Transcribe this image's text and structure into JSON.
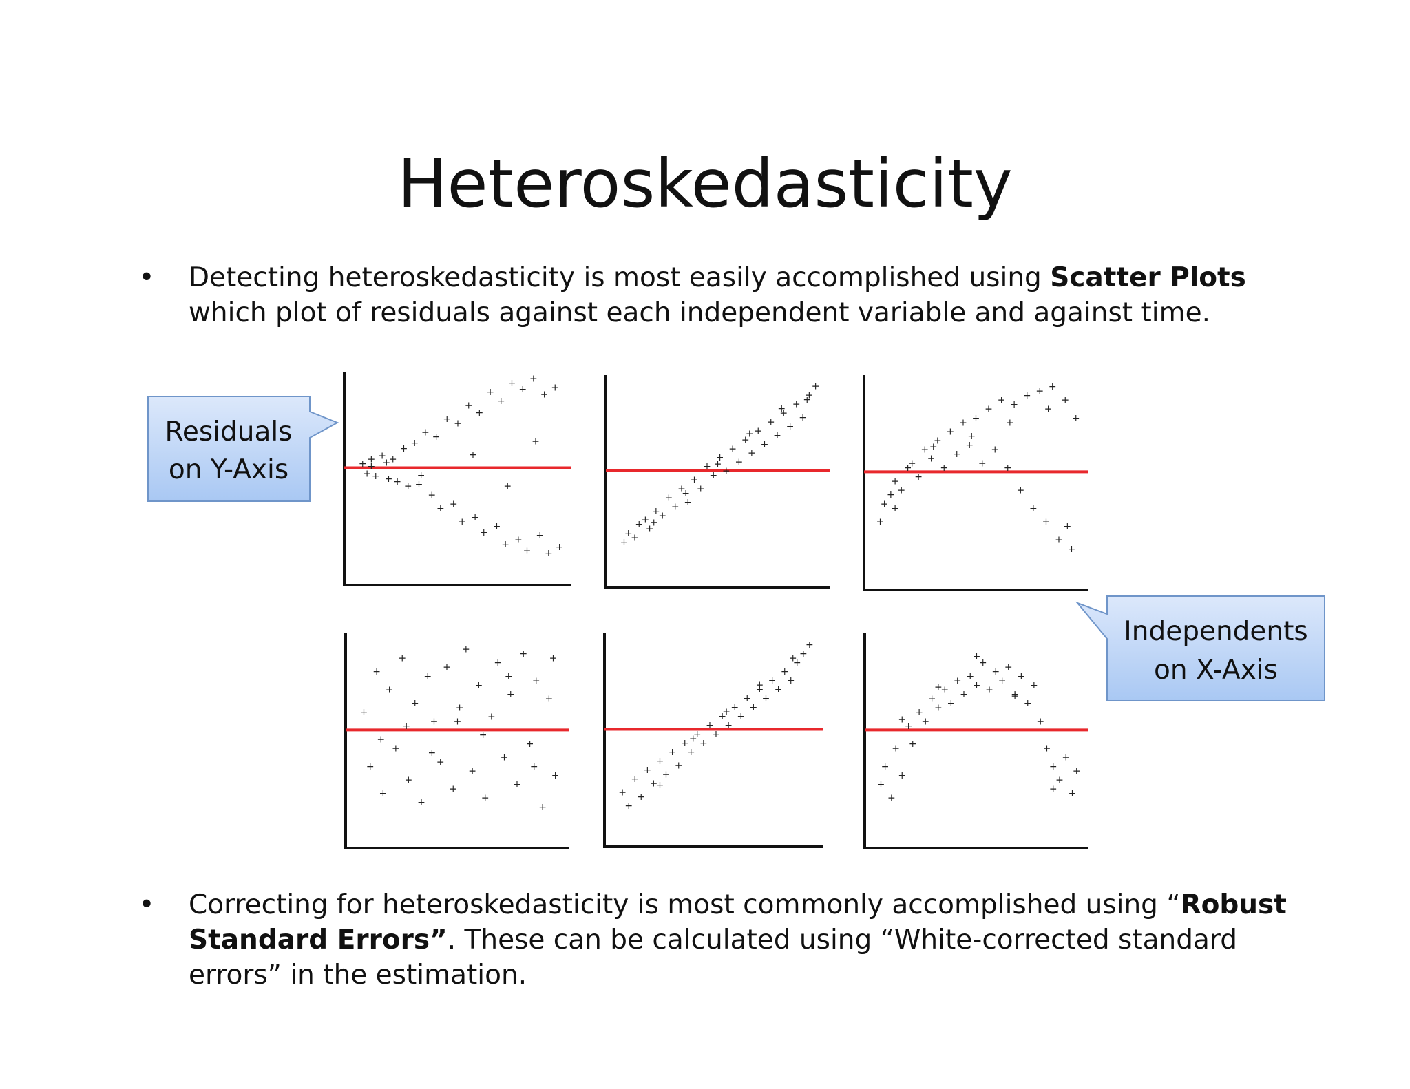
{
  "title": "Heteroskedasticity",
  "bullet1": {
    "before": "Detecting heteroskedasticity is most easily accomplished using ",
    "bold": "Scatter Plots",
    "after": " which plot of residuals against each independent variable and against time."
  },
  "bullet2": {
    "before": "Correcting for heteroskedasticity is most commonly accomplished using “",
    "bold": "Robust Standard Errors”",
    "after": ". These can be calculated using “White-corrected standard errors” in the estimation."
  },
  "callouts": {
    "y_axis": [
      "Residuals",
      "on Y-Axis"
    ],
    "x_axis": [
      "Independents",
      "on X-Axis"
    ]
  },
  "colors": {
    "reference_line": "#e8282c",
    "callout_fill_top": "#dce8fb",
    "callout_fill_bottom": "#a9c8f3",
    "callout_border": "#6f95c9"
  },
  "chart_data": [
    {
      "type": "scatter",
      "pattern": "fan-out",
      "x": [
        0.06,
        0.08,
        0.1,
        0.12,
        0.15,
        0.18,
        0.2,
        0.22,
        0.25,
        0.27,
        0.3,
        0.32,
        0.35,
        0.38,
        0.4,
        0.42,
        0.45,
        0.48,
        0.5,
        0.52,
        0.55,
        0.58,
        0.6,
        0.62,
        0.65,
        0.68,
        0.7,
        0.72,
        0.75,
        0.78,
        0.8,
        0.82,
        0.85,
        0.88,
        0.9,
        0.92,
        0.95,
        0.97,
        0.1,
        0.17,
        0.33,
        0.57,
        0.73,
        0.86
      ],
      "y": [
        0.05,
        -0.06,
        0.1,
        -0.09,
        0.14,
        -0.12,
        0.1,
        -0.15,
        0.22,
        -0.2,
        0.28,
        -0.18,
        0.4,
        -0.3,
        0.35,
        -0.45,
        0.55,
        -0.4,
        0.5,
        -0.6,
        0.7,
        -0.55,
        0.62,
        -0.72,
        0.85,
        -0.65,
        0.75,
        -0.85,
        0.95,
        -0.8,
        0.88,
        -0.92,
        1.0,
        -0.75,
        0.82,
        -0.95,
        0.9,
        -0.88,
        0.02,
        0.06,
        -0.08,
        0.15,
        -0.2,
        0.3
      ]
    },
    {
      "type": "scatter",
      "pattern": "linear-trend",
      "x": [
        0.06,
        0.08,
        0.11,
        0.13,
        0.16,
        0.18,
        0.21,
        0.24,
        0.27,
        0.3,
        0.33,
        0.36,
        0.39,
        0.42,
        0.45,
        0.48,
        0.51,
        0.54,
        0.57,
        0.6,
        0.63,
        0.66,
        0.69,
        0.72,
        0.75,
        0.78,
        0.81,
        0.84,
        0.87,
        0.9,
        0.93,
        0.96,
        0.2,
        0.35,
        0.5,
        0.65,
        0.8,
        0.92
      ],
      "y": [
        -0.8,
        -0.7,
        -0.75,
        -0.6,
        -0.55,
        -0.65,
        -0.45,
        -0.5,
        -0.3,
        -0.4,
        -0.2,
        -0.35,
        -0.1,
        -0.2,
        0.05,
        -0.05,
        0.15,
        0.0,
        0.25,
        0.1,
        0.35,
        0.2,
        0.45,
        0.3,
        0.55,
        0.4,
        0.65,
        0.5,
        0.75,
        0.6,
        0.85,
        0.95,
        -0.58,
        -0.25,
        0.08,
        0.42,
        0.7,
        0.8
      ]
    },
    {
      "type": "scatter",
      "pattern": "curved-fan",
      "x": [
        0.05,
        0.07,
        0.1,
        0.12,
        0.15,
        0.18,
        0.2,
        0.23,
        0.26,
        0.29,
        0.32,
        0.35,
        0.38,
        0.41,
        0.44,
        0.47,
        0.5,
        0.53,
        0.56,
        0.59,
        0.62,
        0.65,
        0.68,
        0.71,
        0.74,
        0.77,
        0.8,
        0.83,
        0.86,
        0.89,
        0.92,
        0.95,
        0.97,
        0.12,
        0.3,
        0.48,
        0.66,
        0.84,
        0.93
      ],
      "y": [
        -0.55,
        -0.35,
        -0.25,
        -0.1,
        -0.2,
        0.05,
        0.1,
        -0.05,
        0.25,
        0.15,
        0.35,
        0.05,
        0.45,
        0.2,
        0.55,
        0.3,
        0.6,
        0.1,
        0.7,
        0.25,
        0.8,
        0.05,
        0.75,
        -0.2,
        0.85,
        -0.4,
        0.9,
        -0.55,
        0.95,
        -0.75,
        0.8,
        -0.85,
        0.6,
        -0.4,
        0.28,
        0.4,
        0.55,
        0.7,
        -0.6
      ]
    },
    {
      "type": "scatter",
      "pattern": "random-homoskedastic",
      "x": [
        0.06,
        0.09,
        0.12,
        0.15,
        0.18,
        0.21,
        0.24,
        0.27,
        0.3,
        0.33,
        0.36,
        0.39,
        0.42,
        0.45,
        0.48,
        0.51,
        0.54,
        0.57,
        0.6,
        0.63,
        0.66,
        0.69,
        0.72,
        0.75,
        0.78,
        0.81,
        0.84,
        0.87,
        0.9,
        0.93,
        0.96,
        0.14,
        0.26,
        0.38,
        0.5,
        0.62,
        0.74,
        0.86,
        0.95
      ],
      "y": [
        0.2,
        -0.4,
        0.65,
        -0.7,
        0.45,
        -0.2,
        0.8,
        -0.55,
        0.3,
        -0.8,
        0.6,
        0.1,
        -0.35,
        0.7,
        -0.65,
        0.25,
        0.9,
        -0.45,
        0.5,
        -0.75,
        0.15,
        0.75,
        -0.3,
        0.4,
        -0.6,
        0.85,
        -0.15,
        0.55,
        -0.85,
        0.35,
        -0.5,
        -0.1,
        0.05,
        -0.25,
        0.1,
        -0.05,
        0.6,
        -0.4,
        0.8
      ]
    },
    {
      "type": "scatter",
      "pattern": "linear-trend",
      "x": [
        0.06,
        0.09,
        0.12,
        0.15,
        0.18,
        0.21,
        0.24,
        0.27,
        0.3,
        0.33,
        0.36,
        0.39,
        0.42,
        0.45,
        0.48,
        0.51,
        0.54,
        0.57,
        0.6,
        0.63,
        0.66,
        0.69,
        0.72,
        0.75,
        0.78,
        0.81,
        0.84,
        0.87,
        0.9,
        0.93,
        0.96,
        0.24,
        0.4,
        0.56,
        0.72,
        0.88
      ],
      "y": [
        -0.7,
        -0.85,
        -0.55,
        -0.75,
        -0.45,
        -0.6,
        -0.35,
        -0.5,
        -0.25,
        -0.4,
        -0.15,
        -0.25,
        -0.05,
        -0.15,
        0.05,
        -0.05,
        0.15,
        0.05,
        0.25,
        0.15,
        0.35,
        0.25,
        0.45,
        0.35,
        0.55,
        0.45,
        0.65,
        0.55,
        0.75,
        0.85,
        0.95,
        -0.62,
        -0.1,
        0.2,
        0.5,
        0.8
      ]
    },
    {
      "type": "scatter",
      "pattern": "curved",
      "x": [
        0.05,
        0.07,
        0.1,
        0.12,
        0.15,
        0.18,
        0.2,
        0.23,
        0.26,
        0.29,
        0.32,
        0.35,
        0.38,
        0.41,
        0.44,
        0.47,
        0.5,
        0.53,
        0.56,
        0.59,
        0.62,
        0.65,
        0.68,
        0.71,
        0.74,
        0.77,
        0.8,
        0.83,
        0.86,
        0.89,
        0.92,
        0.95,
        0.97,
        0.15,
        0.32,
        0.5,
        0.68,
        0.86
      ],
      "y": [
        -0.6,
        -0.4,
        -0.75,
        -0.2,
        -0.5,
        0.05,
        -0.15,
        0.2,
        0.1,
        0.35,
        0.25,
        0.45,
        0.3,
        0.55,
        0.4,
        0.6,
        0.5,
        0.75,
        0.45,
        0.65,
        0.55,
        0.7,
        0.4,
        0.6,
        0.3,
        0.5,
        0.1,
        -0.2,
        -0.4,
        -0.55,
        -0.3,
        -0.7,
        -0.45,
        0.12,
        0.48,
        0.82,
        0.38,
        -0.65
      ]
    }
  ]
}
